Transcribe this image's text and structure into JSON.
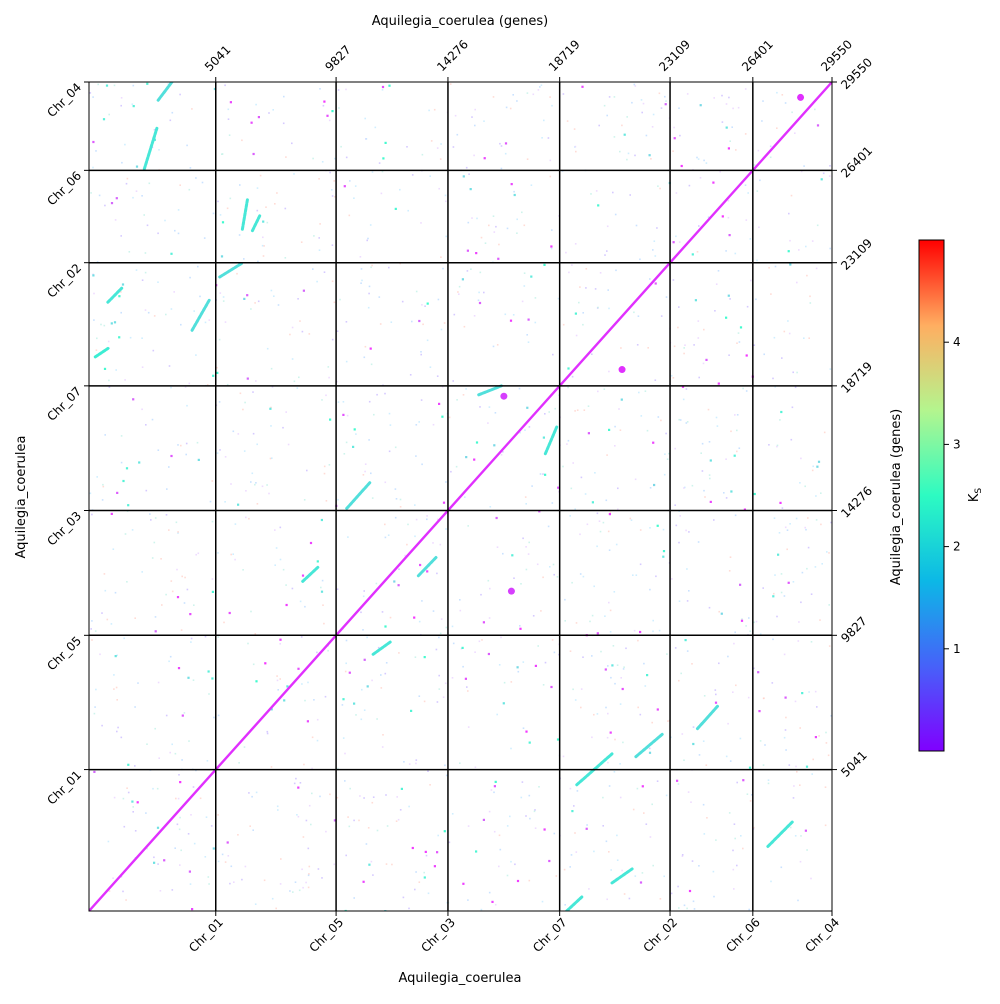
{
  "chart_data": {
    "type": "scatter",
    "title": "",
    "xlabel": "Aquilegia_coerulea",
    "ylabel": "Aquilegia_coerulea",
    "top_xlabel": "Aquilegia_coerulea (genes)",
    "right_ylabel": "Aquilegia_coerulea (genes)",
    "xlim": [
      0,
      29550
    ],
    "ylim": [
      0,
      29550
    ],
    "chromosome_order": [
      "Chr_01",
      "Chr_05",
      "Chr_03",
      "Chr_07",
      "Chr_02",
      "Chr_06",
      "Chr_04"
    ],
    "chromosome_boundaries_genes": [
      0,
      5041,
      9827,
      14276,
      18719,
      23109,
      26401,
      29550
    ],
    "bottom_tick_labels": [
      "Chr_01",
      "Chr_05",
      "Chr_03",
      "Chr_07",
      "Chr_02",
      "Chr_06",
      "Chr_04"
    ],
    "top_tick_labels": [
      "5041",
      "9827",
      "14276",
      "18719",
      "23109",
      "26401",
      "29550"
    ],
    "left_tick_labels": [
      "Chr_01",
      "Chr_05",
      "Chr_03",
      "Chr_07",
      "Chr_02",
      "Chr_06",
      "Chr_04"
    ],
    "right_tick_labels": [
      "5041",
      "9827",
      "14276",
      "18719",
      "23109",
      "26401",
      "29550"
    ],
    "colorbar": {
      "label": "K_S",
      "colormap": "rainbow",
      "range": [
        0,
        5
      ],
      "ticks": [
        "1",
        "2",
        "3",
        "4"
      ],
      "tick_values": [
        1,
        2,
        3,
        4
      ]
    },
    "diagonal": {
      "from": [
        0,
        0
      ],
      "to": [
        29550,
        29550
      ],
      "ks": 0.3
    },
    "syntenic_segments": [
      {
        "x": [
          2200,
          2700
        ],
        "y": [
          26450,
          27900
        ],
        "ks": 1.8
      },
      {
        "x": [
          2750,
          3300
        ],
        "y": [
          28900,
          29550
        ],
        "ks": 1.7
      },
      {
        "x": [
          6100,
          6300
        ],
        "y": [
          24300,
          25350
        ],
        "ks": 1.8
      },
      {
        "x": [
          6500,
          6800
        ],
        "y": [
          24250,
          24800
        ],
        "ks": 1.8
      },
      {
        "x": [
          5200,
          6100
        ],
        "y": [
          22600,
          23100
        ],
        "ks": 1.7
      },
      {
        "x": [
          750,
          1300
        ],
        "y": [
          21700,
          22200
        ],
        "ks": 1.8
      },
      {
        "x": [
          4100,
          4800
        ],
        "y": [
          20700,
          21800
        ],
        "ks": 1.7
      },
      {
        "x": [
          250,
          750
        ],
        "y": [
          19750,
          20050
        ],
        "ks": 1.9
      },
      {
        "x": [
          15500,
          16400
        ],
        "y": [
          18400,
          18719
        ],
        "ks": 1.7
      },
      {
        "x": [
          18150,
          18600
        ],
        "y": [
          16300,
          17250
        ],
        "ks": 1.8
      },
      {
        "x": [
          10250,
          11200
        ],
        "y": [
          14350,
          15300
        ],
        "ks": 1.7
      },
      {
        "x": [
          13100,
          13800
        ],
        "y": [
          11950,
          12600
        ],
        "ks": 1.7
      },
      {
        "x": [
          8500,
          9100
        ],
        "y": [
          11750,
          12250
        ],
        "ks": 1.8
      },
      {
        "x": [
          11300,
          12000
        ],
        "y": [
          9150,
          9600
        ],
        "ks": 1.8
      },
      {
        "x": [
          21750,
          22800
        ],
        "y": [
          5500,
          6300
        ],
        "ks": 1.7
      },
      {
        "x": [
          24200,
          25000
        ],
        "y": [
          6500,
          7300
        ],
        "ks": 1.7
      },
      {
        "x": [
          19400,
          20800
        ],
        "y": [
          4500,
          5600
        ],
        "ks": 1.8
      },
      {
        "x": [
          27000,
          28000
        ],
        "y": [
          2300,
          3200
        ],
        "ks": 1.8
      },
      {
        "x": [
          19000,
          19600
        ],
        "y": [
          0,
          500
        ],
        "ks": 1.8
      },
      {
        "x": [
          20800,
          21600
        ],
        "y": [
          1000,
          1500
        ],
        "ks": 1.8
      }
    ],
    "paralog_blocks": [
      {
        "x": 16800,
        "y": 11400,
        "ks": 0.4
      },
      {
        "x": 21200,
        "y": 19300,
        "ks": 0.3
      },
      {
        "x": 16500,
        "y": 18350,
        "ks": 0.4
      },
      {
        "x": 28300,
        "y": 29000,
        "ks": 0.3
      }
    ],
    "legend": "none",
    "grid": false
  }
}
